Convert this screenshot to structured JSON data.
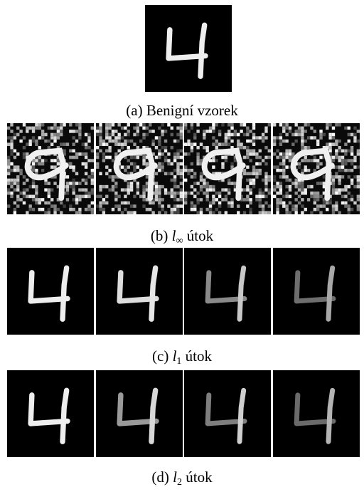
{
  "figure": {
    "panels": [
      {
        "id": "a",
        "caption_prefix": "(a) ",
        "caption_symbol": "",
        "caption_sub": "",
        "caption_suffix": "Benigní vzorek",
        "images": 1,
        "style": "clean"
      },
      {
        "id": "b",
        "caption_prefix": "(b) ",
        "caption_symbol": "l",
        "caption_sub": "∞",
        "caption_suffix": " útok",
        "images": 4,
        "style": "noisy"
      },
      {
        "id": "c",
        "caption_prefix": "(c) ",
        "caption_symbol": "l",
        "caption_sub": "1",
        "caption_suffix": " útok",
        "images": 4,
        "style": "dim"
      },
      {
        "id": "d",
        "caption_prefix": "(d) ",
        "caption_symbol": "l",
        "caption_sub": "2",
        "caption_suffix": " útok",
        "images": 4,
        "style": "dim"
      }
    ]
  }
}
